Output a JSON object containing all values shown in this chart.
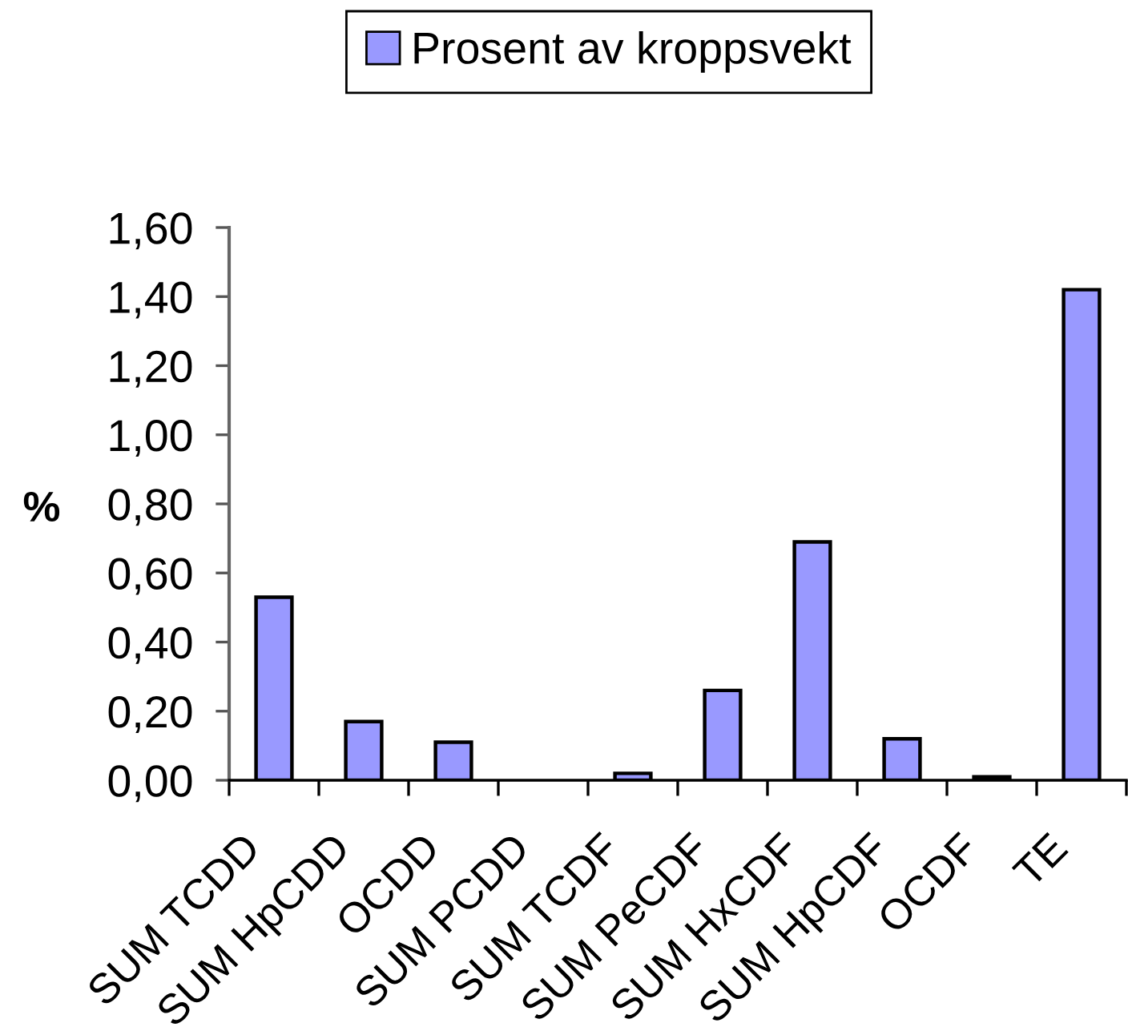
{
  "chart_data": {
    "type": "bar",
    "ylabel": "%",
    "categories": [
      "SUM TCDD",
      "SUM HpCDD",
      "OCDD",
      "SUM PCDD",
      "SUM TCDF",
      "SUM PeCDF",
      "SUM HxCDF",
      "SUM HpCDF",
      "OCDF",
      "TE"
    ],
    "series": [
      {
        "name": "Prosent av kroppsvekt",
        "color": "#9999ff",
        "values": [
          0.53,
          0.17,
          0.11,
          null,
          0.02,
          0.26,
          0.69,
          0.12,
          0.01,
          1.42
        ]
      }
    ],
    "ylim": [
      0,
      1.6
    ],
    "yticks": [
      {
        "value": 0,
        "label": "0,00"
      },
      {
        "value": 0.2,
        "label": "0,20"
      },
      {
        "value": 0.4,
        "label": "0,40"
      },
      {
        "value": 0.6,
        "label": "0,60"
      },
      {
        "value": 0.8,
        "label": "0,80"
      },
      {
        "value": 1.0,
        "label": "1,00"
      },
      {
        "value": 1.2,
        "label": "1,20"
      },
      {
        "value": 1.4,
        "label": "1,40"
      },
      {
        "value": 1.6,
        "label": "1,60"
      }
    ],
    "legend": "top"
  }
}
